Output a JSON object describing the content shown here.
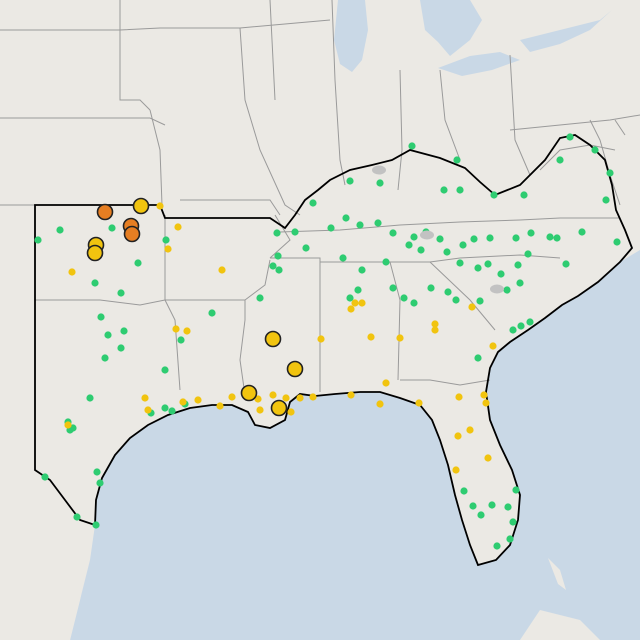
{
  "colors": {
    "land": "#ebe9e4",
    "water": "#c9d8e6",
    "state_border": "#9a9a9a",
    "region_outline": "#000000",
    "marker_green": "#2ecc71",
    "marker_yellow": "#f1c40f",
    "marker_orange": "#e67e22",
    "marker_gray": "#c2c2c2"
  },
  "legend_levels": [
    "green",
    "yellow",
    "orange",
    "gray"
  ]
}
